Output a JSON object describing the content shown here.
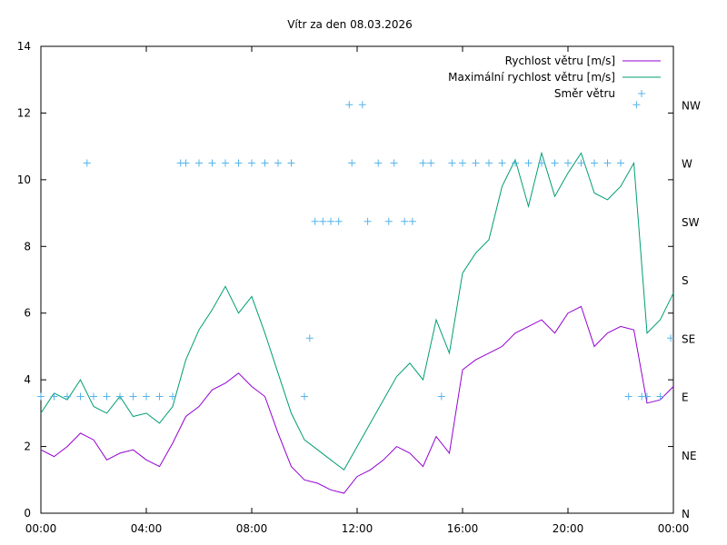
{
  "chart_data": {
    "type": "line",
    "title": "Vítr za den 08.03.2026",
    "xlabel": "",
    "ylabel": "",
    "x_range_hours": [
      0,
      24
    ],
    "x_ticks": [
      "00:00",
      "04:00",
      "08:00",
      "12:00",
      "16:00",
      "20:00",
      "00:00"
    ],
    "ylim": [
      0,
      14
    ],
    "y_ticks": [
      "0",
      "2",
      "4",
      "6",
      "8",
      "10",
      "12",
      "14"
    ],
    "y2_ticks": [
      "N",
      "NE",
      "E",
      "SE",
      "S",
      "SW",
      "W",
      "NW"
    ],
    "legend_position": "top-right",
    "series": [
      {
        "name": "Rychlost větru [m/s]",
        "color": "#9400d3",
        "x_hours": [
          0,
          0.5,
          1,
          1.5,
          2,
          2.5,
          3,
          3.5,
          4,
          4.5,
          5,
          5.5,
          6,
          6.5,
          7,
          7.5,
          8,
          8.5,
          9,
          9.5,
          10,
          10.5,
          11,
          11.5,
          12,
          12.5,
          13,
          13.5,
          14,
          14.5,
          15,
          15.5,
          16,
          16.5,
          17,
          17.5,
          18,
          18.5,
          19,
          19.5,
          20,
          20.5,
          21,
          21.5,
          22,
          22.5,
          23,
          23.5,
          24
        ],
        "values": [
          1.9,
          1.7,
          2.0,
          2.4,
          2.2,
          1.6,
          1.8,
          1.9,
          1.6,
          1.4,
          2.1,
          2.9,
          3.2,
          3.7,
          3.9,
          4.2,
          3.8,
          3.5,
          2.4,
          1.4,
          1.0,
          0.9,
          0.7,
          0.6,
          1.1,
          1.3,
          1.6,
          2.0,
          1.8,
          1.4,
          2.3,
          1.8,
          4.3,
          4.6,
          4.8,
          5.0,
          5.4,
          5.6,
          5.8,
          5.4,
          6.0,
          6.2,
          5.0,
          5.4,
          5.6,
          5.5,
          3.3,
          3.4,
          3.8
        ]
      },
      {
        "name": "Maximální rychlost větru [m/s]",
        "color": "#009e73",
        "x_hours": [
          0,
          0.5,
          1,
          1.5,
          2,
          2.5,
          3,
          3.5,
          4,
          4.5,
          5,
          5.5,
          6,
          6.5,
          7,
          7.5,
          8,
          8.5,
          9,
          9.5,
          10,
          10.5,
          11,
          11.5,
          12,
          12.5,
          13,
          13.5,
          14,
          14.5,
          15,
          15.5,
          16,
          16.5,
          17,
          17.5,
          18,
          18.5,
          19,
          19.5,
          20,
          20.5,
          21,
          21.5,
          22,
          22.5,
          23,
          23.5,
          24
        ],
        "values": [
          3.0,
          3.6,
          3.4,
          4.0,
          3.2,
          3.0,
          3.5,
          2.9,
          3.0,
          2.7,
          3.2,
          4.6,
          5.5,
          6.1,
          6.8,
          6.0,
          6.5,
          5.4,
          4.2,
          3.0,
          2.2,
          1.9,
          1.6,
          1.3,
          2.0,
          2.7,
          3.4,
          4.1,
          4.5,
          4.0,
          5.8,
          4.8,
          7.2,
          7.8,
          8.2,
          9.8,
          10.6,
          9.2,
          10.8,
          9.5,
          10.2,
          10.8,
          9.6,
          9.4,
          9.8,
          10.5,
          5.4,
          5.8,
          6.6
        ]
      },
      {
        "name": "Směr větru",
        "color": "#56b4e9",
        "x_hours": [
          0,
          0.5,
          1,
          1.5,
          1.75,
          2,
          2.5,
          3,
          3.5,
          4,
          4.5,
          5,
          5.3,
          5.5,
          6,
          6.5,
          7,
          7.5,
          8,
          8.5,
          9,
          9.5,
          10,
          10.2,
          10.4,
          10.7,
          11,
          11.3,
          11.7,
          11.8,
          12.2,
          12.4,
          12.8,
          13.2,
          13.4,
          13.8,
          14.1,
          14.5,
          14.8,
          15.2,
          15.6,
          16,
          16.5,
          17,
          17.5,
          18,
          18.5,
          19,
          19.5,
          20,
          20.5,
          21,
          21.5,
          22,
          22.3,
          22.6,
          22.8,
          23,
          23.5,
          23.9
        ],
        "values": [
          "E",
          "E",
          "E",
          "E",
          "W",
          "E",
          "E",
          "E",
          "E",
          "E",
          "E",
          "E",
          "W",
          "W",
          "W",
          "W",
          "W",
          "W",
          "W",
          "W",
          "W",
          "W",
          "E",
          "SE",
          "SW",
          "SW",
          "SW",
          "SW",
          "NW",
          "W",
          "NW",
          "SW",
          "W",
          "SW",
          "W",
          "SW",
          "SW",
          "W",
          "W",
          "E",
          "W",
          "W",
          "W",
          "W",
          "W",
          "W",
          "W",
          "W",
          "W",
          "W",
          "W",
          "W",
          "W",
          "W",
          "E",
          "NW",
          "E",
          "E",
          "E",
          "SE"
        ]
      }
    ]
  }
}
